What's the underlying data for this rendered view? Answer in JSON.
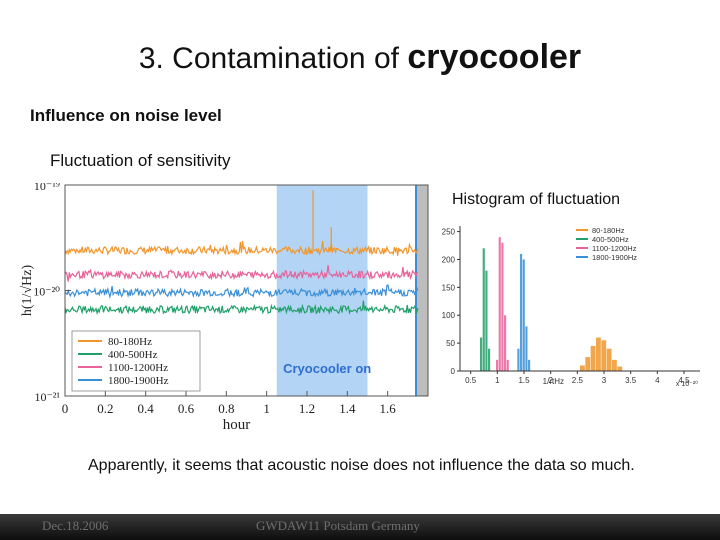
{
  "slide": {
    "title_prefix": "3.  Contamination of ",
    "title_main": "cryocooler",
    "subtitle": "Influence on noise level",
    "section": "Fluctuation of sensitivity",
    "histogram_title": "Histogram of fluctuation",
    "conclusion": "Apparently, it seems that acoustic noise does not influence the data so much.",
    "footer_date": "Dec.18.2006",
    "footer_event": "GWDAW11 Potsdam Germany"
  },
  "colors": {
    "band_80_180": "#f0962d",
    "band_400_500": "#21a06a",
    "band_1100_1200": "#e9629b",
    "band_1800_1900": "#3a8fd6",
    "cryo_highlight": "#b3d4f5",
    "cryo_text": "#2f6fd0"
  },
  "chart_data": [
    {
      "type": "line",
      "xlabel": "hour",
      "ylabel": "h(1/√Hz)",
      "x_ticks": [
        "0",
        "0.2",
        "0.4",
        "0.6",
        "0.8",
        "1",
        "1.2",
        "1.4",
        "1.6"
      ],
      "y_ticks": [
        "10⁻¹⁹",
        "10⁻²⁰",
        "10⁻²¹"
      ],
      "xlim": [
        0,
        1.8
      ],
      "ylim_log10": [
        -21,
        -19
      ],
      "y_scale": "log",
      "annotation": "Cryocooler on",
      "cryocooler_on_range": [
        1.05,
        1.5
      ],
      "legend_position": "bottom-left",
      "series": [
        {
          "name": "80-180Hz",
          "level_log10": -19.62
        },
        {
          "name": "400-500Hz",
          "level_log10": -20.18
        },
        {
          "name": "1100-1200Hz",
          "level_log10": -19.85
        },
        {
          "name": "1800-1900Hz",
          "level_log10": -20.02
        }
      ]
    },
    {
      "type": "bar",
      "xlabel": "1/rtHz",
      "x_multiplier": "x 10⁻²⁰",
      "x_ticks": [
        "0.5",
        "1",
        "1.5",
        "2",
        "2.5",
        "3",
        "3.5",
        "4",
        "4.5"
      ],
      "y_ticks": [
        "0",
        "50",
        "100",
        "150",
        "200",
        "250"
      ],
      "xlim": [
        0.3,
        4.8
      ],
      "ylim": [
        0,
        260
      ],
      "legend_position": "top-right",
      "series": [
        {
          "name": "80-180Hz",
          "x": [
            2.6,
            2.7,
            2.8,
            2.9,
            3.0,
            3.1,
            3.2,
            3.3
          ],
          "values": [
            10,
            25,
            45,
            60,
            55,
            40,
            20,
            8
          ]
        },
        {
          "name": "400-500Hz",
          "x": [
            0.7,
            0.75,
            0.8,
            0.85
          ],
          "values": [
            60,
            220,
            180,
            40
          ]
        },
        {
          "name": "1100-1200Hz",
          "x": [
            1.0,
            1.05,
            1.1,
            1.15,
            1.2
          ],
          "values": [
            20,
            240,
            230,
            100,
            20
          ]
        },
        {
          "name": "1800-1900Hz",
          "x": [
            1.4,
            1.45,
            1.5,
            1.55,
            1.6
          ],
          "values": [
            40,
            210,
            200,
            80,
            20
          ]
        }
      ]
    }
  ]
}
